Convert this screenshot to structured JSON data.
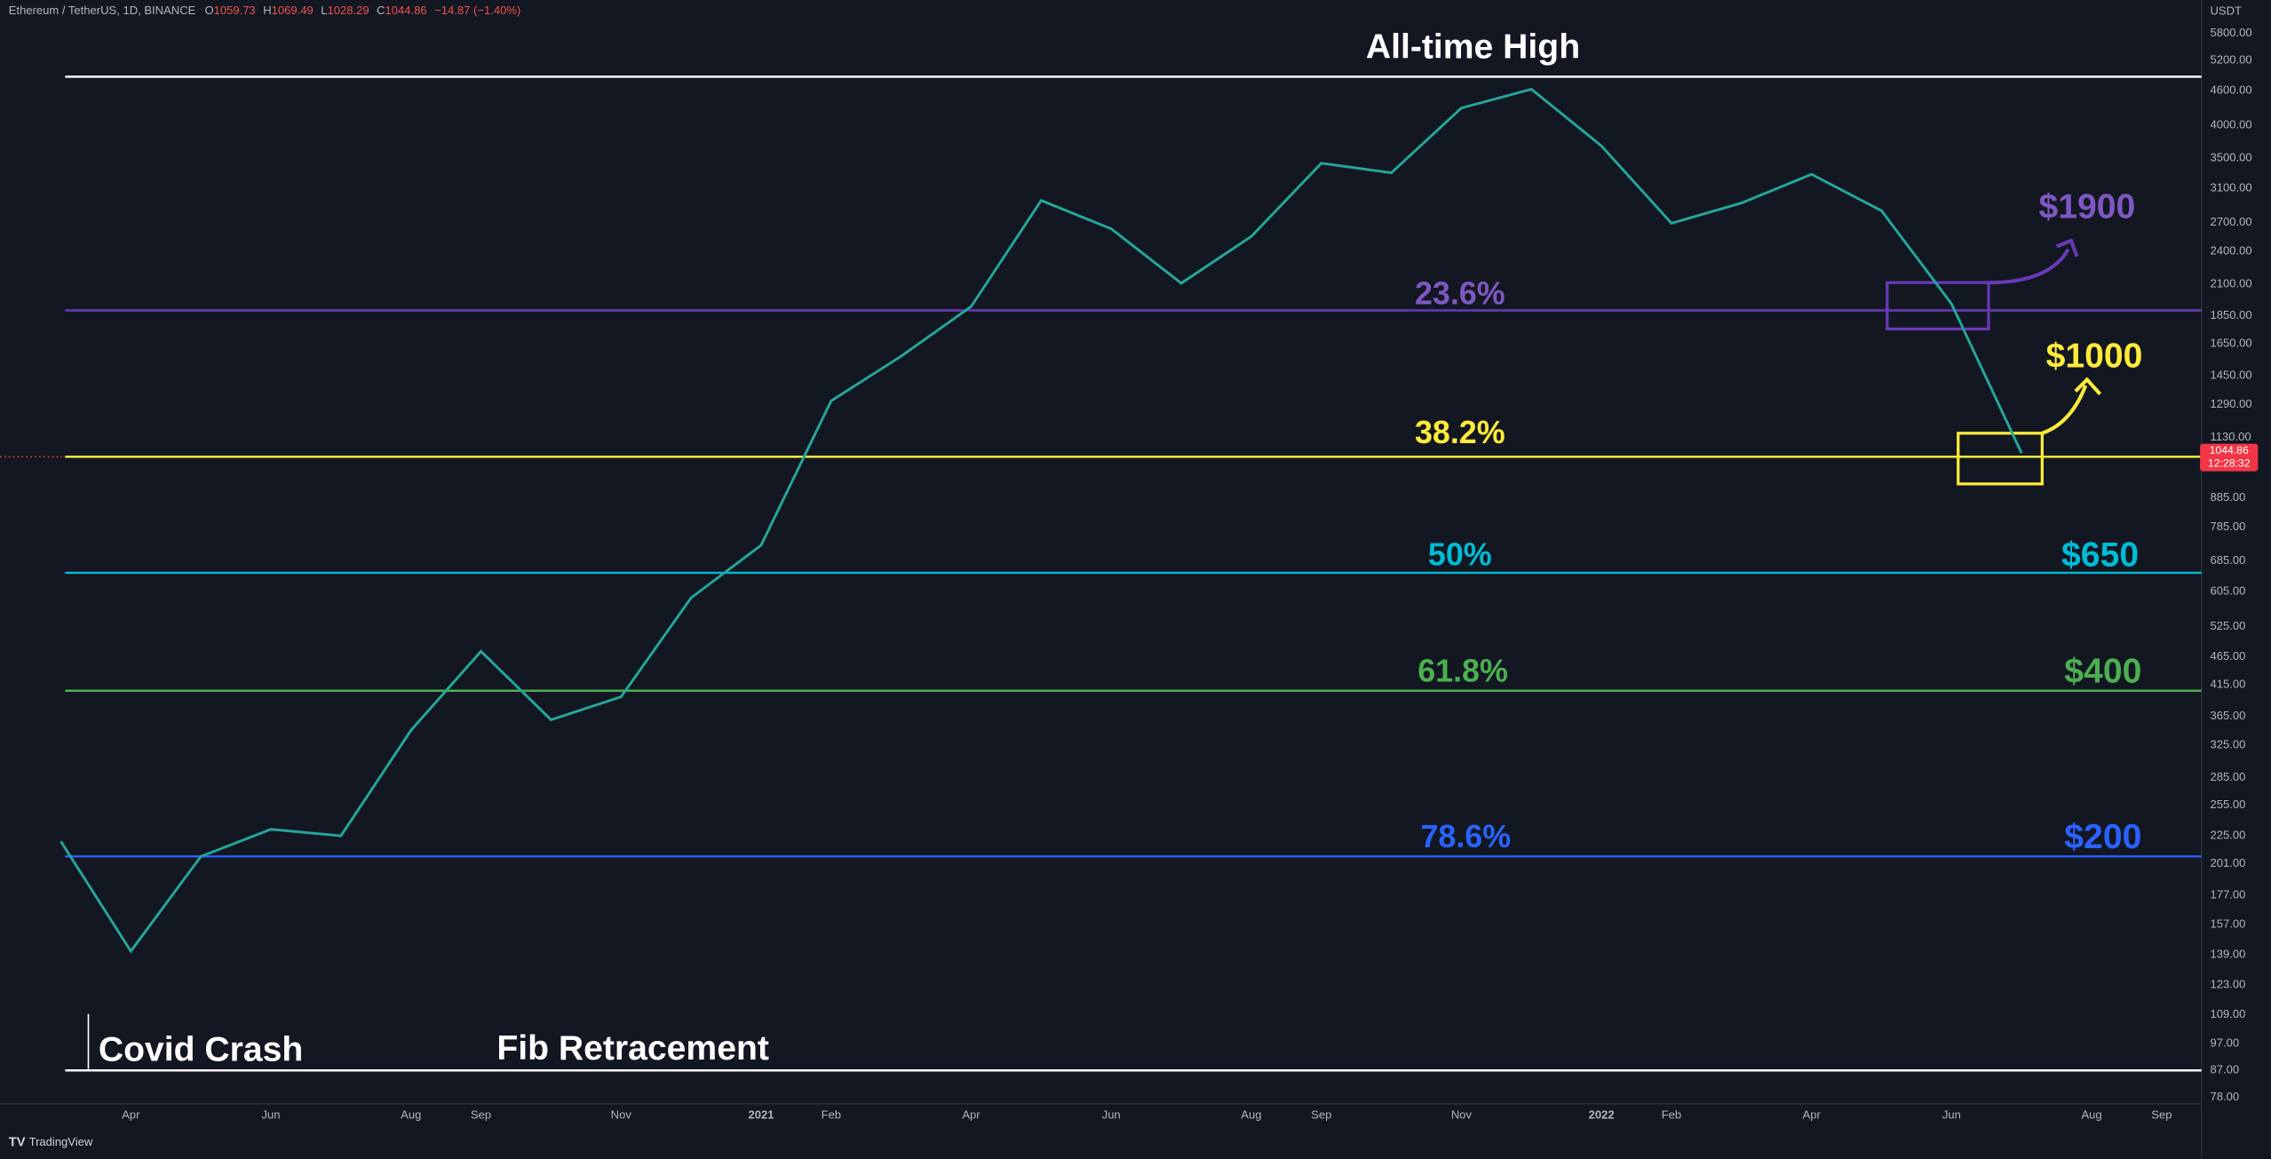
{
  "header": {
    "title": "Ethereum / TetherUS, 1D, BINANCE",
    "open_label": "O",
    "open": "1059.73",
    "high_label": "H",
    "high": "1069.49",
    "low_label": "L",
    "low": "1028.29",
    "close_label": "C",
    "close": "1044.86",
    "change": "−14.87 (−1.40%)"
  },
  "chart_data": {
    "type": "line",
    "categories": [
      null,
      "Apr",
      null,
      "Jun",
      null,
      "Aug",
      "Sep",
      null,
      "Nov",
      null,
      "2021",
      "Feb",
      null,
      "Apr",
      null,
      "Jun",
      null,
      "Aug",
      "Sep",
      null,
      "Nov",
      null,
      "2022",
      "Feb",
      null,
      "Apr",
      null,
      "Jun",
      null,
      "Aug",
      "Sep"
    ],
    "series": [
      {
        "name": "ETHUSDT",
        "color": "#26a69a",
        "values": [
          220,
          141,
          207,
          231,
          225,
          345,
          475,
          360,
          395,
          590,
          730,
          1310,
          1570,
          1920,
          2950,
          2630,
          2110,
          2550,
          3430,
          3300,
          4290,
          4630,
          3680,
          2690,
          2920,
          3280,
          2830,
          1940,
          1060,
          null,
          null
        ]
      }
    ],
    "log_scale": true,
    "y_unit": "USDT",
    "ylim": [
      76,
      6640
    ],
    "yticks": [
      {
        "value": 5800,
        "label": "5800.00"
      },
      {
        "value": 5200,
        "label": "5200.00"
      },
      {
        "value": 4600,
        "label": "4600.00"
      },
      {
        "value": 4000,
        "label": "4000.00"
      },
      {
        "value": 3500,
        "label": "3500.00"
      },
      {
        "value": 3100,
        "label": "3100.00"
      },
      {
        "value": 2700,
        "label": "2700.00"
      },
      {
        "value": 2400,
        "label": "2400.00"
      },
      {
        "value": 2100,
        "label": "2100.00"
      },
      {
        "value": 1850,
        "label": "1850.00"
      },
      {
        "value": 1650,
        "label": "1650.00"
      },
      {
        "value": 1450,
        "label": "1450.00"
      },
      {
        "value": 1290,
        "label": "1290.00"
      },
      {
        "value": 1130,
        "label": "1130.00"
      },
      {
        "value": 885,
        "label": "885.00"
      },
      {
        "value": 785,
        "label": "785.00"
      },
      {
        "value": 685,
        "label": "685.00"
      },
      {
        "value": 605,
        "label": "605.00"
      },
      {
        "value": 525,
        "label": "525.00"
      },
      {
        "value": 465,
        "label": "465.00"
      },
      {
        "value": 415,
        "label": "415.00"
      },
      {
        "value": 365,
        "label": "365.00"
      },
      {
        "value": 325,
        "label": "325.00"
      },
      {
        "value": 285,
        "label": "285.00"
      },
      {
        "value": 255,
        "label": "255.00"
      },
      {
        "value": 225,
        "label": "225.00"
      },
      {
        "value": 201,
        "label": "201.00"
      },
      {
        "value": 177,
        "label": "177.00"
      },
      {
        "value": 157,
        "label": "157.00"
      },
      {
        "value": 139,
        "label": "139.00"
      },
      {
        "value": 123,
        "label": "123.00"
      },
      {
        "value": 109,
        "label": "109.00"
      },
      {
        "value": 97,
        "label": "97.00"
      },
      {
        "value": 87,
        "label": "87.00"
      },
      {
        "value": 78,
        "label": "78.00"
      }
    ],
    "levels": [
      {
        "label": "All-time High",
        "value": 4870,
        "color": "#ffffff"
      },
      {
        "label": "23.6%",
        "price_label": "$1900",
        "value": 1890,
        "color": "#673ab7"
      },
      {
        "label": "38.2%",
        "price_label": "$1000",
        "value": 1045,
        "color": "#ffeb3b"
      },
      {
        "label": "50%",
        "price_label": "$650",
        "value": 653,
        "color": "#00bcd4"
      },
      {
        "label": "61.8%",
        "price_label": "$400",
        "value": 405,
        "color": "#4caf50"
      },
      {
        "label": "78.6%",
        "price_label": "$200",
        "value": 207,
        "color": "#2962ff"
      },
      {
        "label": "Fib Retracement",
        "value": 87,
        "color": "#ffffff"
      }
    ],
    "annotations": [
      "Covid Crash"
    ],
    "price_tag": {
      "value": 1044.86,
      "label": "1044.86",
      "countdown": "12:28:32"
    }
  },
  "footer": "TradingView"
}
